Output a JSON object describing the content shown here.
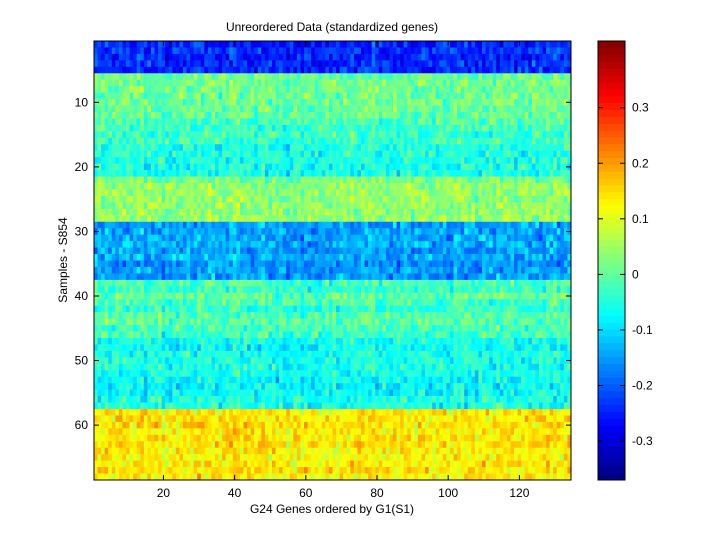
{
  "chart_data": {
    "type": "heatmap",
    "title": "Unreordered Data (standardized genes)",
    "xlabel": "G24 Genes ordered by G1(S1)",
    "ylabel": "Samples - S854",
    "x_range": [
      1,
      134
    ],
    "y_range": [
      1,
      68
    ],
    "x_ticks": [
      20,
      40,
      60,
      80,
      100,
      120
    ],
    "y_ticks": [
      10,
      20,
      30,
      40,
      50,
      60
    ],
    "color_range": [
      -0.37,
      0.42
    ],
    "colorbar_ticks": [
      -0.3,
      -0.2,
      -0.1,
      0,
      0.1,
      0.2,
      0.3
    ],
    "colormap": "jet",
    "row_band_means": [
      {
        "rows": [
          1,
          5
        ],
        "mean": -0.25
      },
      {
        "rows": [
          6,
          12
        ],
        "mean": 0.01
      },
      {
        "rows": [
          13,
          16
        ],
        "mean": -0.03
      },
      {
        "rows": [
          17,
          21
        ],
        "mean": -0.05
      },
      {
        "rows": [
          22,
          28
        ],
        "mean": 0.04
      },
      {
        "rows": [
          29,
          37
        ],
        "mean": -0.15
      },
      {
        "rows": [
          38,
          46
        ],
        "mean": -0.02
      },
      {
        "rows": [
          47,
          57
        ],
        "mean": -0.06
      },
      {
        "rows": [
          58,
          68
        ],
        "mean": 0.14
      }
    ]
  }
}
